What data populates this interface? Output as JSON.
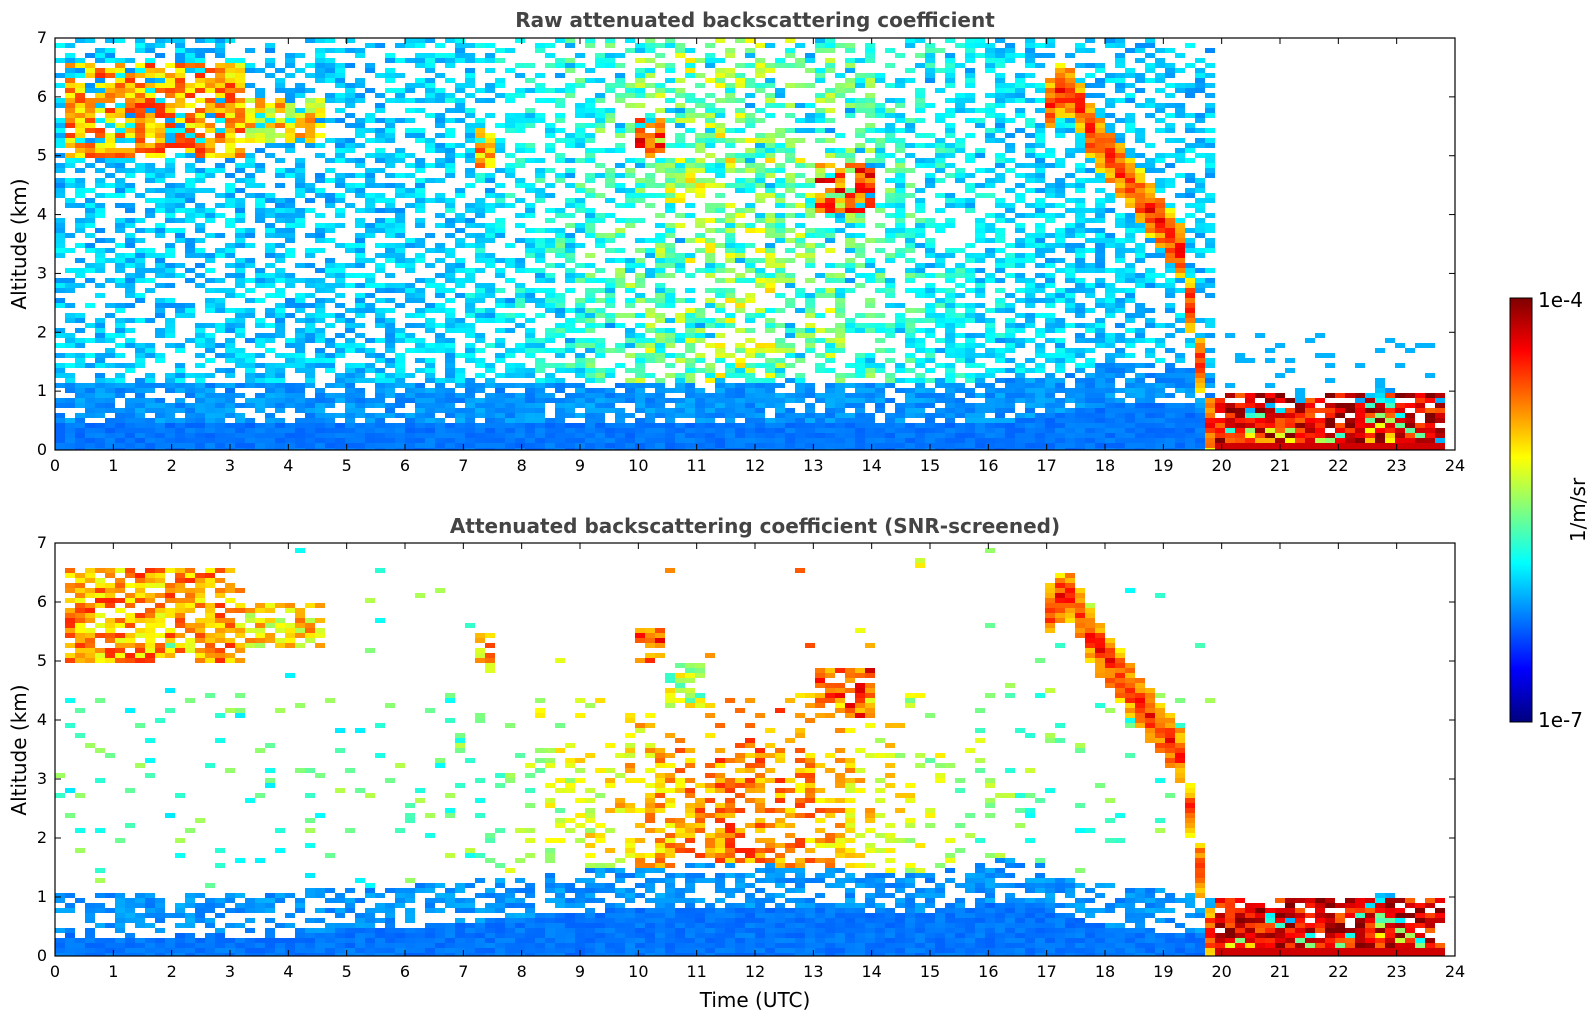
{
  "chart_data": [
    {
      "type": "heatmap",
      "title": "Raw attenuated backscattering coefficient",
      "xlabel": "",
      "ylabel": "Altitude (km)",
      "xlim": [
        0,
        24
      ],
      "ylim": [
        0,
        7
      ],
      "xticks": [
        0,
        1,
        2,
        3,
        4,
        5,
        6,
        7,
        8,
        9,
        10,
        11,
        12,
        13,
        14,
        15,
        16,
        17,
        18,
        19,
        20,
        21,
        22,
        23,
        24
      ],
      "yticks": [
        0,
        1,
        2,
        3,
        4,
        5,
        6,
        7
      ],
      "grid": false,
      "features": [
        {
          "kind": "cirrus",
          "x_range": [
            0.2,
            3.2
          ],
          "alt_range": [
            5.0,
            6.6
          ],
          "level": 0.72
        },
        {
          "kind": "cirrus",
          "x_range": [
            3.2,
            4.6
          ],
          "alt_range": [
            5.2,
            6.0
          ],
          "level": 0.65
        },
        {
          "kind": "cloud",
          "x_range": [
            7.2,
            7.5
          ],
          "alt_range": [
            4.8,
            5.5
          ],
          "level": 0.7
        },
        {
          "kind": "cloud",
          "x_range": [
            10.0,
            10.4
          ],
          "alt_range": [
            5.0,
            5.6
          ],
          "level": 0.8
        },
        {
          "kind": "cloud",
          "x_range": [
            10.4,
            11.2
          ],
          "alt_range": [
            4.2,
            5.0
          ],
          "level": 0.55
        },
        {
          "kind": "cloud",
          "x_range": [
            13.0,
            14.0
          ],
          "alt_range": [
            4.0,
            4.9
          ],
          "level": 0.8
        },
        {
          "kind": "descending-layer",
          "x_range": [
            16.9,
            19.7
          ],
          "alt_range": [
            0.3,
            6.3
          ],
          "level": 0.85
        },
        {
          "kind": "low-cloud",
          "x_range": [
            19.8,
            23.8
          ],
          "alt_range": [
            0.1,
            1.0
          ],
          "level": 0.9
        }
      ]
    },
    {
      "type": "heatmap",
      "title": "Attenuated backscattering coefficient (SNR-screened)",
      "xlabel": "Time (UTC)",
      "ylabel": "Altitude (km)",
      "xlim": [
        0,
        24
      ],
      "ylim": [
        0,
        7
      ],
      "xticks": [
        0,
        1,
        2,
        3,
        4,
        5,
        6,
        7,
        8,
        9,
        10,
        11,
        12,
        13,
        14,
        15,
        16,
        17,
        18,
        19,
        20,
        21,
        22,
        23,
        24
      ],
      "yticks": [
        0,
        1,
        2,
        3,
        4,
        5,
        6,
        7
      ],
      "grid": false
    }
  ],
  "colorbar": {
    "label": "1/m/sr",
    "max_label": "1e-4",
    "min_label": "1e-7",
    "colormap": "jet",
    "colors": [
      "#00007f",
      "#0000ff",
      "#007fff",
      "#00ffff",
      "#7fff7f",
      "#ffff00",
      "#ff7f00",
      "#ff0000",
      "#7f0000"
    ]
  }
}
